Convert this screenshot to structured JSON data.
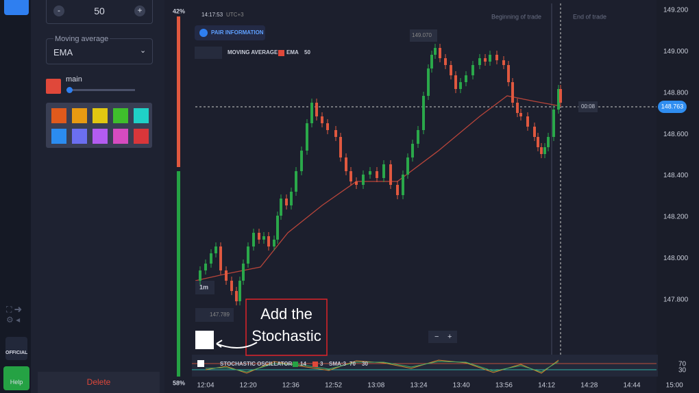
{
  "sidebar": {
    "official": "OFFICIAL",
    "help": "Help"
  },
  "panel": {
    "period_value": "50",
    "ma_label": "Moving average",
    "ma_type": "EMA",
    "color_label": "main",
    "delete": "Delete"
  },
  "chart": {
    "up_pct": "42%",
    "down_pct": "58%",
    "time": "14:17:53",
    "tz": "UTC+3",
    "pair_info": "PAIR INFORMATION",
    "high_label": "149.070",
    "indicator": {
      "name": "MOVING AVERAGE",
      "type": "EMA",
      "period": "50"
    },
    "begin": "Beginning of trade",
    "end": "End of trade",
    "price_labels": [
      "149.200",
      "149.000",
      "148.800",
      "148.600",
      "148.400",
      "148.200",
      "148.000",
      "147.800"
    ],
    "timer": "00:08",
    "current_price": "148.763",
    "timeframe": "1m",
    "low_label": "147.789",
    "zoom_out": "−",
    "zoom_in": "+",
    "stochastic": {
      "name": "STOCHASTIC OSCILLATOR",
      "k": "14",
      "d": "3",
      "sma": "SMA:3",
      "upper": "70",
      "lower": "30"
    },
    "stoch_levels": [
      "70",
      "30"
    ],
    "time_labels": [
      "12:04",
      "12:20",
      "12:36",
      "12:52",
      "13:08",
      "13:24",
      "13:40",
      "13:56",
      "14:12",
      "14:28",
      "14:44",
      "15:00"
    ],
    "annotation": "Add the Stochastic"
  }
}
